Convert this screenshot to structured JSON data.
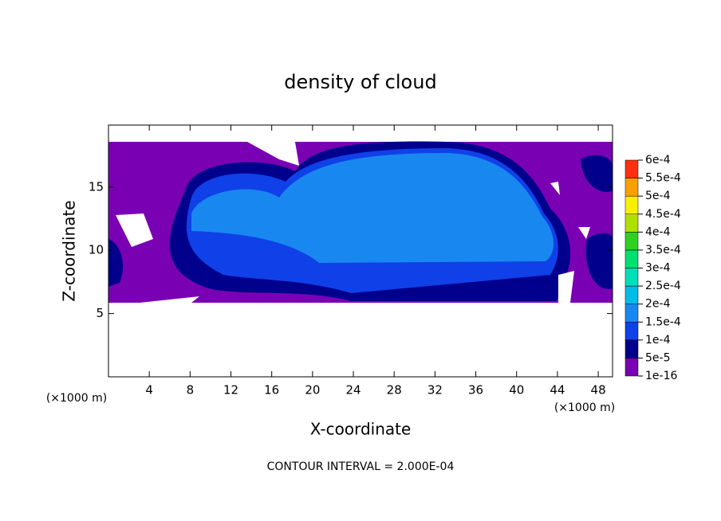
{
  "chart_data": {
    "type": "contour",
    "title": "density of cloud",
    "xlabel": "X-coordinate",
    "ylabel": "Z-coordinate",
    "xunit": "(×1000 m)",
    "yunit": "(×1000 m)",
    "footer": "CONTOUR INTERVAL = 2.000E-04",
    "xlim": [
      0,
      49.4
    ],
    "ylim": [
      0,
      19.9
    ],
    "xticks": [
      4,
      8,
      12,
      16,
      20,
      24,
      28,
      32,
      36,
      40,
      44,
      48
    ],
    "yticks": [
      5,
      10,
      15
    ],
    "levels": [
      {
        "value": 1e-16,
        "label": "1e-16"
      },
      {
        "value": 5e-05,
        "label": "5e-5"
      },
      {
        "value": 0.0001,
        "label": "1e-4"
      },
      {
        "value": 0.00015,
        "label": "1.5e-4"
      },
      {
        "value": 0.0002,
        "label": "2e-4"
      },
      {
        "value": 0.00025,
        "label": "2.5e-4"
      },
      {
        "value": 0.0003,
        "label": "3e-4"
      },
      {
        "value": 0.00035,
        "label": "3.5e-4"
      },
      {
        "value": 0.0004,
        "label": "4e-4"
      },
      {
        "value": 0.00045,
        "label": "4.5e-4"
      },
      {
        "value": 0.0005,
        "label": "5e-4"
      },
      {
        "value": 0.00055,
        "label": "5.5e-4"
      },
      {
        "value": 0.0006,
        "label": "6e-4"
      }
    ],
    "colors": [
      "#7a00b4",
      "#00008c",
      "#1040e8",
      "#1888f0",
      "#00bce8",
      "#00e0b8",
      "#00e070",
      "#30d020",
      "#b0e000",
      "#f8f000",
      "#f8a000",
      "#ff3010"
    ]
  }
}
